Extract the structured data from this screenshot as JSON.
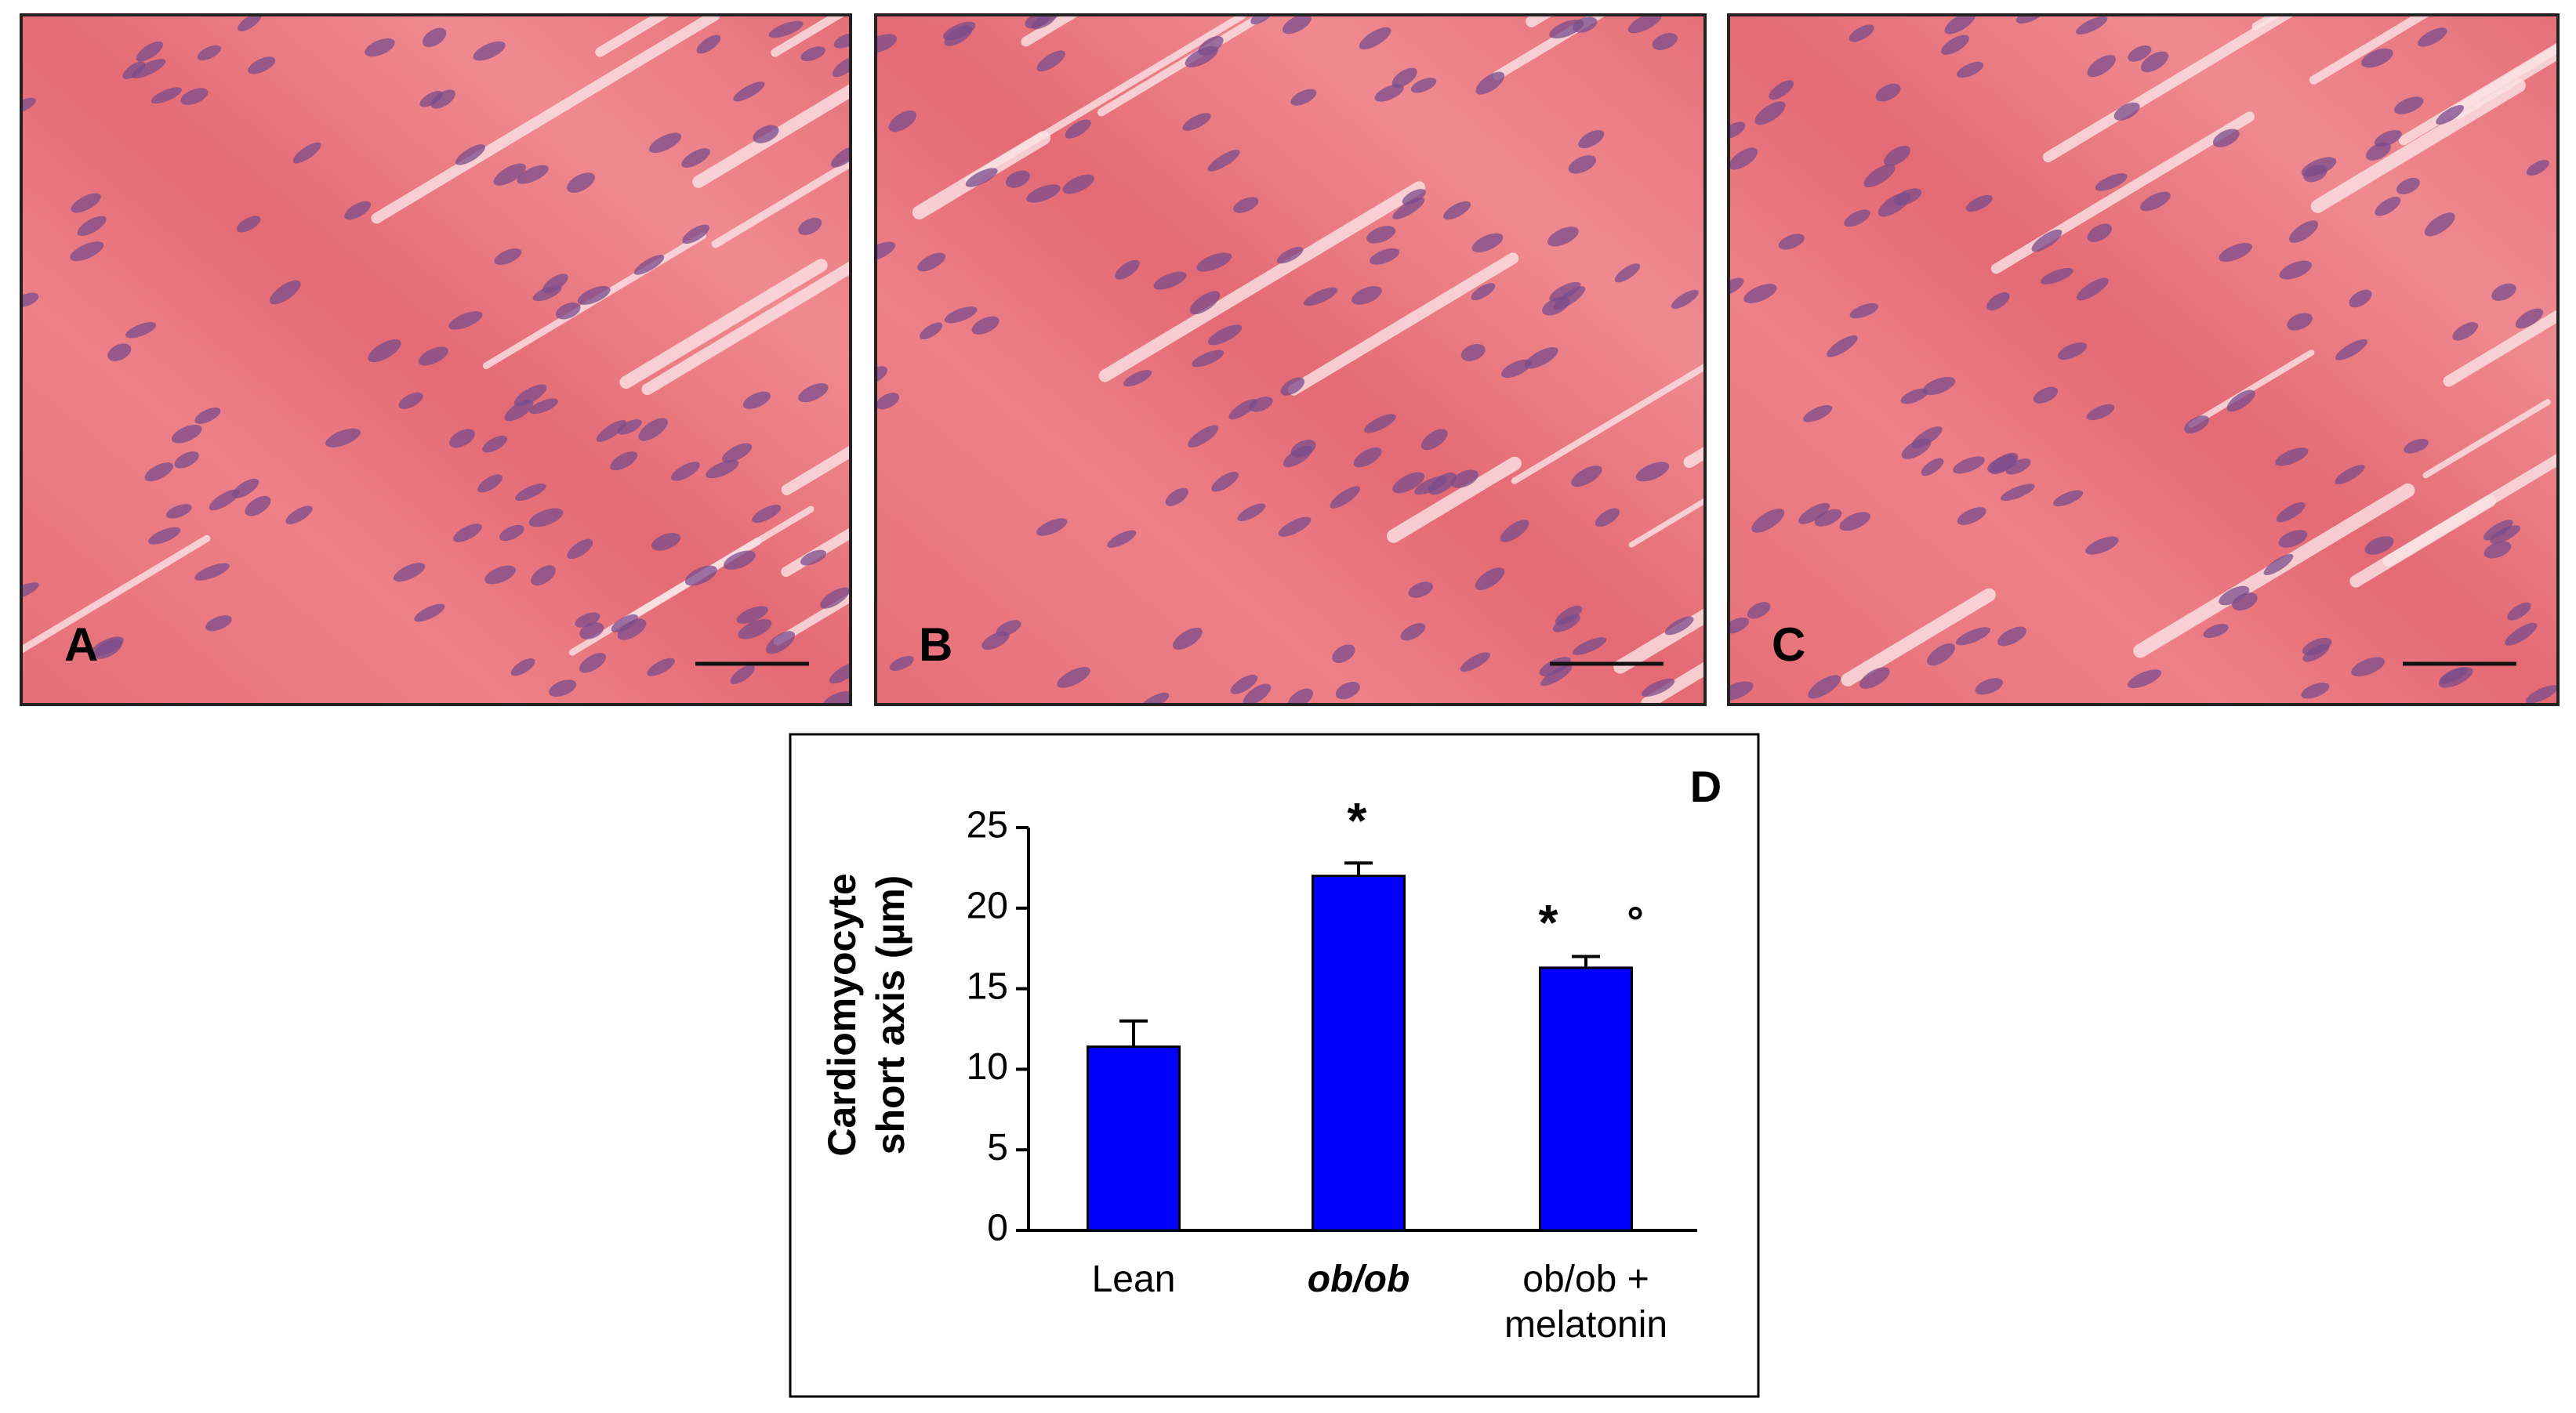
{
  "panels": [
    "A",
    "B",
    "C"
  ],
  "chart_data": {
    "type": "bar",
    "panel_label": "D",
    "y_label": [
      "Cardiomyocyte",
      "short axis (µm)"
    ],
    "categories": [
      "Lean",
      "ob/ob",
      "ob/ob + melatonin"
    ],
    "values": [
      11.4,
      22.0,
      16.3
    ],
    "errors": [
      1.6,
      0.8,
      0.7
    ],
    "color": "#0000ff",
    "annotations": [
      "*",
      "*",
      "°"
    ],
    "ylim": [
      0,
      25
    ],
    "yticks": [
      0,
      5,
      10,
      15,
      20,
      25
    ]
  }
}
